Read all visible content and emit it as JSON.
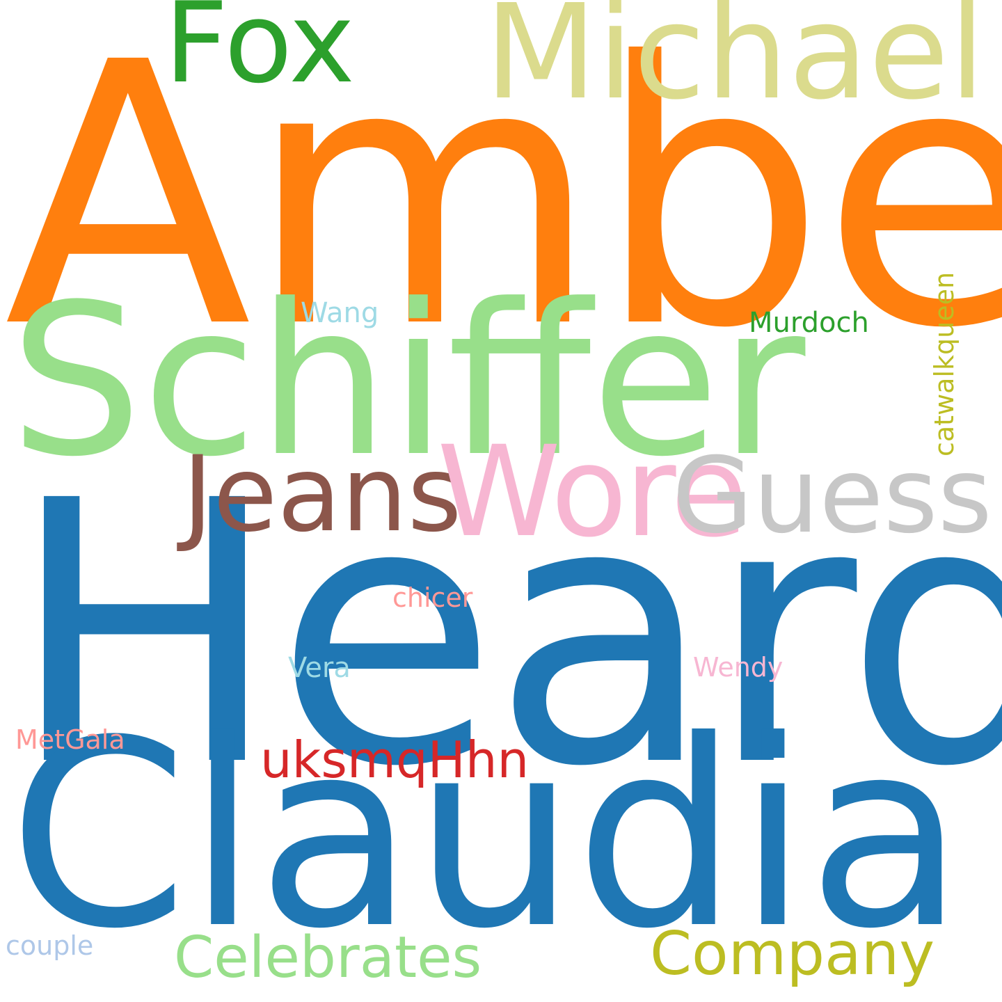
{
  "background": "#ffffff",
  "words": {
    "heard": {
      "text": "Heard",
      "color": "#1f77b4"
    },
    "amber": {
      "text": "Amber",
      "color": "#ff7f0e"
    },
    "claudia": {
      "text": "Claudia",
      "color": "#1f77b4"
    },
    "schiffer": {
      "text": "Schiffer",
      "color": "#98df8a"
    },
    "michael": {
      "text": "Michael",
      "color": "#dbdb8d"
    },
    "fox": {
      "text": "Fox",
      "color": "#2ca02c"
    },
    "jeans": {
      "text": "Jeans",
      "color": "#8c564b"
    },
    "wore": {
      "text": "Wore",
      "color": "#f7b6d2"
    },
    "guess": {
      "text": "Guess",
      "color": "#c7c7c7"
    },
    "company": {
      "text": "Company",
      "color": "#bcbd22"
    },
    "celebrates": {
      "text": "Celebrates",
      "color": "#98df8a"
    },
    "uksmqhhn": {
      "text": "uksmqHhn",
      "color": "#d62728"
    },
    "murdoch": {
      "text": "Murdoch",
      "color": "#2ca02c"
    },
    "wang": {
      "text": "Wang",
      "color": "#9edae5"
    },
    "chicer": {
      "text": "chicer",
      "color": "#ff9896"
    },
    "vera": {
      "text": "Vera",
      "color": "#9edae5"
    },
    "wendy": {
      "text": "Wendy",
      "color": "#f7b6d2"
    },
    "metgala": {
      "text": "MetGala",
      "color": "#ff9896"
    },
    "couple": {
      "text": "couple",
      "color": "#aec7e8"
    },
    "catwalkqueen": {
      "text": "catwalkqueen",
      "color": "#bcbd22",
      "orientation": "vertical"
    }
  }
}
